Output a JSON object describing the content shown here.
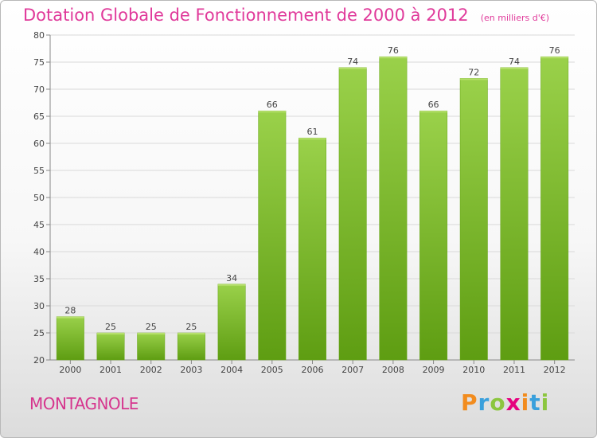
{
  "chart_data": {
    "type": "bar",
    "title": "Dotation Globale de Fonctionnement de 2000 à 2012",
    "subtitle": "(en milliers d'€)",
    "categories": [
      "2000",
      "2001",
      "2002",
      "2003",
      "2004",
      "2005",
      "2006",
      "2007",
      "2008",
      "2009",
      "2010",
      "2011",
      "2012"
    ],
    "values": [
      28,
      25,
      25,
      25,
      34,
      66,
      61,
      74,
      76,
      66,
      72,
      74,
      76
    ],
    "ylim": [
      20,
      80
    ],
    "yticks": [
      20,
      25,
      30,
      35,
      40,
      45,
      50,
      55,
      60,
      65,
      70,
      75,
      80
    ],
    "xlabel": "",
    "ylabel": "",
    "grid": true,
    "bar_color": "#7fc21f"
  },
  "commune": "MONTAGNOLE",
  "logo": {
    "letters": [
      "P",
      "r",
      "o",
      "x",
      "i",
      "t",
      "i"
    ],
    "colors": [
      "#f28c1e",
      "#3aa0dc",
      "#8cc63f",
      "#e5007e",
      "#f28c1e",
      "#3aa0dc",
      "#8cc63f"
    ]
  }
}
